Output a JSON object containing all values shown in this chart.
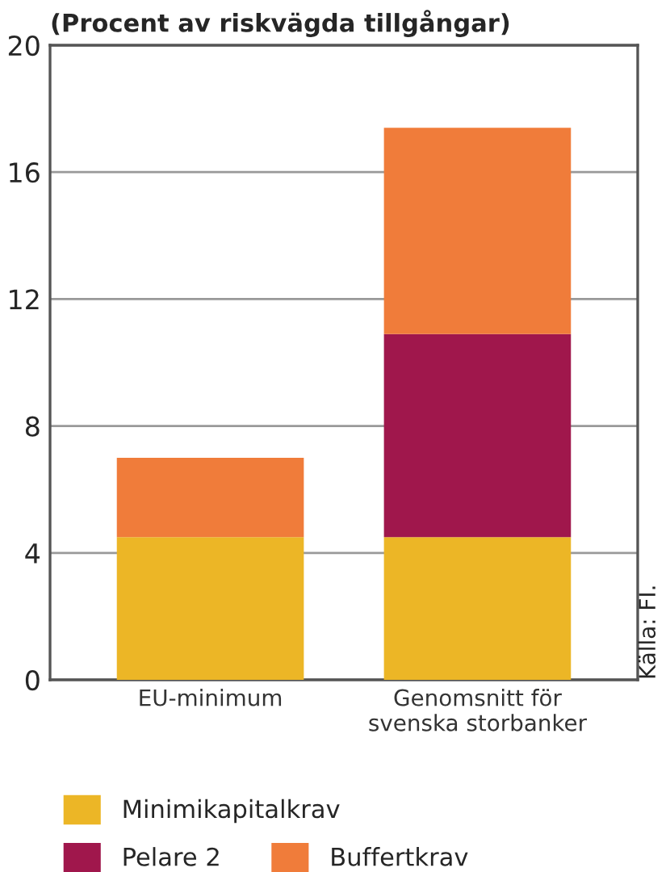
{
  "chart_data": {
    "type": "bar",
    "title": "(Procent av riskvägda tillgångar)",
    "categories": [
      "EU-minimum",
      "Genomsnitt för\nsvenska storbanker"
    ],
    "stacked": true,
    "series": [
      {
        "name": "Minimikapitalkrav",
        "color": "#ecb626",
        "values": [
          4.5,
          4.5
        ]
      },
      {
        "name": "Pelare 2",
        "color": "#a0174c",
        "values": [
          0,
          6.4
        ]
      },
      {
        "name": "Buffertkrav",
        "color": "#f07c3a",
        "values": [
          2.5,
          6.5
        ]
      }
    ],
    "ylim": [
      0,
      20
    ],
    "yticks": [
      0,
      4,
      8,
      12,
      16,
      20
    ],
    "grid": "y",
    "legend": "bottom",
    "annotations": [
      "Källa: FI."
    ]
  }
}
